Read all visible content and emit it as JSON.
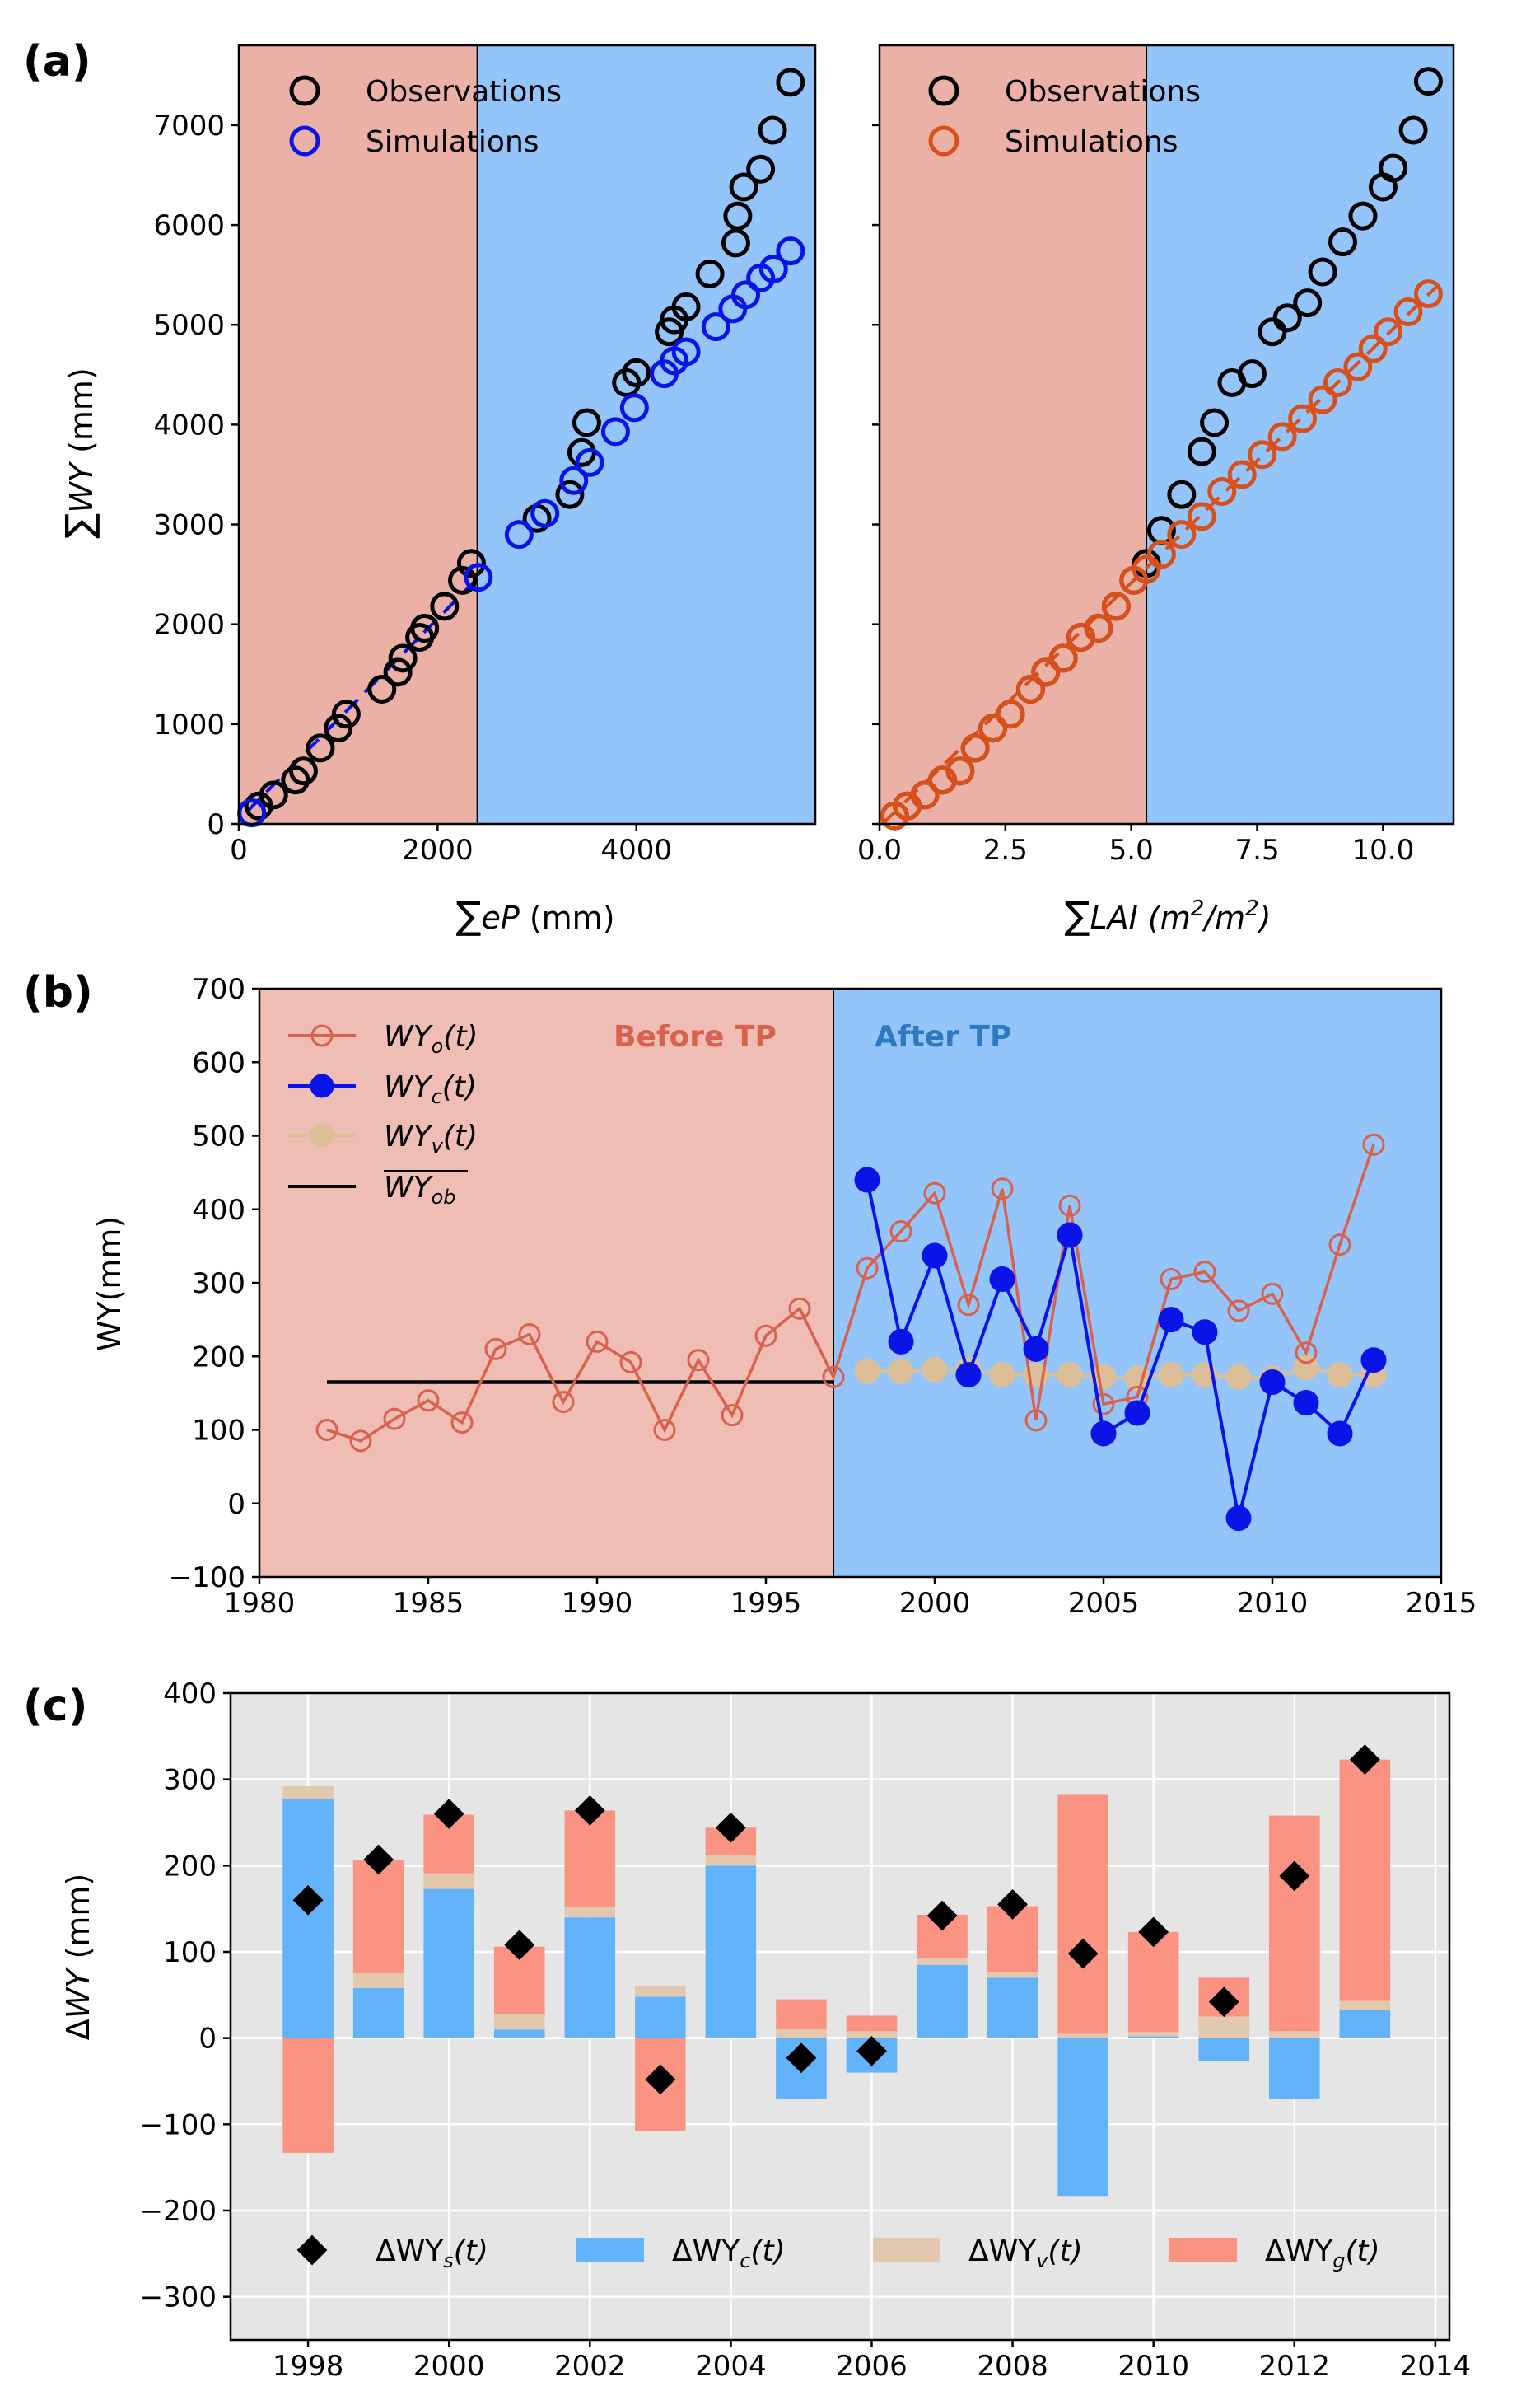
{
  "panel_labels": [
    "(a)",
    "(b)",
    "(c)"
  ],
  "colors": {
    "before_bg": "#ebb0a6",
    "after_bg": "#93c5fb",
    "before_bg_b": "#efbdb4",
    "obs": "#000000",
    "sim_left": "#0a14e6",
    "sim_right": "#d9501a",
    "wyo": "#d9624e",
    "wyc": "#0a14e6",
    "wyv": "#dcbf96",
    "mean": "#000000",
    "dc": "#63b3fb",
    "dv": "#e2c9ae",
    "dg": "#fb9382",
    "grid_bg": "#e5e5e5",
    "before_text": "#d9624e",
    "after_text": "#2f79c0"
  },
  "chart_data": [
    {
      "type": "scatter",
      "panel": "(a)",
      "xlabel_prefix": "∑",
      "xlabel_var": "eP",
      "xlabel_unit": " (mm)",
      "ylabel_prefix": "∑",
      "ylabel_var": "WY",
      "ylabel_unit": " (mm)",
      "xlim": [
        0,
        5800
      ],
      "ylim": [
        0,
        7800
      ],
      "xticks": [
        "0",
        "2000",
        "4000"
      ],
      "xtick_values": [
        0,
        2000,
        4000
      ],
      "yticks": [
        "0",
        "1000",
        "2000",
        "3000",
        "4000",
        "5000",
        "6000",
        "7000"
      ],
      "ytick_values": [
        0,
        1000,
        2000,
        3000,
        4000,
        5000,
        6000,
        7000
      ],
      "split_x": 2400,
      "legend": [
        "Observations",
        "Simulations"
      ],
      "legend_position": "upper-left",
      "fit_line": [
        [
          80,
          120
        ],
        [
          2410,
          2470
        ]
      ],
      "observations": {
        "x": [
          130,
          200,
          350,
          570,
          650,
          820,
          1000,
          1080,
          1440,
          1600,
          1650,
          1820,
          1870,
          2070,
          2250,
          2340,
          3000,
          3330,
          3450,
          3500,
          3900,
          4000,
          4330,
          4380,
          4500,
          4740,
          5000,
          5020,
          5080,
          5250,
          5370,
          5550
        ],
        "y": [
          110,
          180,
          290,
          440,
          530,
          760,
          960,
          1100,
          1350,
          1520,
          1660,
          1870,
          1960,
          2180,
          2440,
          2610,
          3060,
          3300,
          3720,
          4020,
          4420,
          4520,
          4930,
          5050,
          5180,
          5510,
          5820,
          6090,
          6380,
          6560,
          6950,
          7430
        ]
      },
      "simulations": {
        "x": [
          130,
          2410,
          2820,
          3080,
          3370,
          3530,
          3790,
          3980,
          4280,
          4380,
          4500,
          4800,
          4970,
          5100,
          5250,
          5380,
          5550
        ],
        "y": [
          110,
          2470,
          2900,
          3110,
          3440,
          3620,
          3930,
          4170,
          4510,
          4640,
          4730,
          4980,
          5160,
          5300,
          5470,
          5560,
          5740
        ]
      }
    },
    {
      "type": "scatter",
      "panel": "(a)",
      "xlabel_prefix": "∑",
      "xlabel_var": "LAI",
      "xlabel_unit_it": " (m",
      "xlabel_unit_exp": "2",
      "xlabel_unit_mid": "/m",
      "xlabel_unit_end": ")",
      "xlim": [
        0,
        11.4
      ],
      "ylim": [
        0,
        7800
      ],
      "xticks": [
        "0.0",
        "2.5",
        "5.0",
        "7.5",
        "10.0"
      ],
      "xtick_values": [
        0,
        2.5,
        5.0,
        7.5,
        10.0
      ],
      "split_x": 5.3,
      "legend": [
        "Observations",
        "Simulations"
      ],
      "legend_position": "upper-left",
      "fit_line": [
        [
          0.1,
          20
        ],
        [
          11.1,
          5400
        ]
      ],
      "observations": {
        "x": [
          0.3,
          0.55,
          0.9,
          1.25,
          1.6,
          1.9,
          2.25,
          2.6,
          3.0,
          3.3,
          3.65,
          4.0,
          4.35,
          4.7,
          5.05,
          5.3,
          5.6,
          6.0,
          6.4,
          6.65,
          7.0,
          7.4,
          7.8,
          8.1,
          8.5,
          8.8,
          9.2,
          9.6,
          10.0,
          10.2,
          10.6,
          10.9
        ],
        "y": [
          80,
          180,
          290,
          440,
          530,
          760,
          960,
          1100,
          1350,
          1520,
          1660,
          1870,
          1960,
          2180,
          2440,
          2610,
          2940,
          3300,
          3730,
          4020,
          4420,
          4510,
          4930,
          5070,
          5220,
          5530,
          5830,
          6090,
          6380,
          6570,
          6950,
          7440
        ]
      },
      "simulations": {
        "x": [
          0.3,
          0.55,
          0.9,
          1.25,
          1.6,
          1.9,
          2.25,
          2.6,
          3.0,
          3.3,
          3.65,
          4.0,
          4.35,
          4.7,
          5.05,
          5.3,
          5.6,
          6.0,
          6.4,
          6.8,
          7.2,
          7.6,
          8.0,
          8.4,
          8.8,
          9.1,
          9.5,
          9.8,
          10.1,
          10.5,
          10.9
        ],
        "y": [
          80,
          180,
          290,
          440,
          530,
          760,
          960,
          1100,
          1350,
          1520,
          1660,
          1870,
          1960,
          2180,
          2440,
          2550,
          2700,
          2900,
          3080,
          3330,
          3500,
          3700,
          3880,
          4060,
          4250,
          4420,
          4580,
          4760,
          4930,
          5130,
          5310
        ]
      }
    },
    {
      "type": "line",
      "panel": "(b)",
      "ylabel": "WY(mm)",
      "xlim": [
        1980,
        2015
      ],
      "ylim": [
        -100,
        700
      ],
      "xticks": [
        "1980",
        "1985",
        "1990",
        "1995",
        "2000",
        "2005",
        "2010",
        "2015"
      ],
      "xtick_values": [
        1980,
        1985,
        1990,
        1995,
        2000,
        2005,
        2010,
        2015
      ],
      "yticks": [
        "−100",
        "0",
        "100",
        "200",
        "300",
        "400",
        "500",
        "600",
        "700"
      ],
      "ytick_values": [
        -100,
        0,
        100,
        200,
        300,
        400,
        500,
        600,
        700
      ],
      "split_x": 1997,
      "region_labels": [
        "Before TP",
        "After TP"
      ],
      "legend_position": "upper-left",
      "legend": [
        {
          "var": "WY",
          "sub": "o",
          "arg": "(t)"
        },
        {
          "var": "WY",
          "sub": "c",
          "arg": "(t)"
        },
        {
          "var": "WY",
          "sub": "v",
          "arg": "(t)"
        },
        {
          "var": "WY",
          "sub": "ob",
          "arg": ""
        }
      ],
      "mean_value": 165,
      "mean_range": [
        1982,
        1997
      ],
      "series": [
        {
          "key": "wyo",
          "x": [
            1982,
            1983,
            1984,
            1985,
            1986,
            1987,
            1988,
            1989,
            1990,
            1991,
            1992,
            1993,
            1994,
            1995,
            1996,
            1997,
            1998,
            1999,
            2000,
            2001,
            2002,
            2003,
            2004,
            2005,
            2006,
            2007,
            2008,
            2009,
            2010,
            2011,
            2012,
            2013
          ],
          "y": [
            100,
            85,
            115,
            140,
            110,
            210,
            230,
            138,
            220,
            192,
            100,
            195,
            120,
            228,
            265,
            172,
            320,
            370,
            422,
            270,
            428,
            113,
            405,
            135,
            145,
            305,
            315,
            262,
            285,
            205,
            352,
            488
          ]
        },
        {
          "key": "wyc",
          "x": [
            1998,
            1999,
            2000,
            2001,
            2002,
            2003,
            2004,
            2005,
            2006,
            2007,
            2008,
            2009,
            2010,
            2011,
            2012,
            2013
          ],
          "y": [
            440,
            220,
            337,
            175,
            305,
            210,
            365,
            95,
            123,
            250,
            233,
            -20,
            165,
            137,
            95,
            195
          ]
        },
        {
          "key": "wyv",
          "x": [
            1998,
            1999,
            2000,
            2001,
            2002,
            2003,
            2004,
            2005,
            2006,
            2007,
            2008,
            2009,
            2010,
            2011,
            2012,
            2013
          ],
          "y": [
            180,
            180,
            182,
            182,
            175,
            175,
            175,
            172,
            170,
            175,
            175,
            172,
            170,
            185,
            175,
            175
          ]
        }
      ]
    },
    {
      "type": "bar",
      "panel": "(c)",
      "ylabel_prefix": "Δ",
      "ylabel_var": "WY",
      "ylabel_unit": " (mm)",
      "xlim": [
        1996.9,
        2014.2
      ],
      "ylim": [
        -350,
        400
      ],
      "xticks": [
        "1998",
        "2000",
        "2002",
        "2004",
        "2006",
        "2008",
        "2010",
        "2012",
        "2014"
      ],
      "xtick_values": [
        1998,
        2000,
        2002,
        2004,
        2006,
        2008,
        2010,
        2012,
        2014
      ],
      "yticks": [
        "−300",
        "−200",
        "−100",
        "0",
        "100",
        "200",
        "300",
        "400"
      ],
      "ytick_values": [
        -300,
        -200,
        -100,
        0,
        100,
        200,
        300,
        400
      ],
      "grid": true,
      "legend_position": "bottom",
      "legend": [
        {
          "var": "ΔWY",
          "sub": "s",
          "arg": "(t)"
        },
        {
          "var": "ΔWY",
          "sub": "c",
          "arg": "(t)"
        },
        {
          "var": "ΔWY",
          "sub": "v",
          "arg": "(t)"
        },
        {
          "var": "ΔWY",
          "sub": "g",
          "arg": "(t)"
        }
      ],
      "categories": [
        1998,
        1999,
        2000,
        2001,
        2002,
        2003,
        2004,
        2005,
        2006,
        2007,
        2008,
        2009,
        2010,
        2011,
        2012,
        2013
      ],
      "dWYc": [
        277,
        58,
        173,
        10,
        140,
        48,
        200,
        -70,
        -40,
        85,
        70,
        -183,
        2,
        -27,
        -70,
        33
      ],
      "dWYv": [
        15,
        17,
        18,
        18,
        12,
        12,
        12,
        10,
        8,
        8,
        6,
        5,
        5,
        25,
        8,
        10
      ],
      "dWYg": [
        -133,
        132,
        68,
        78,
        112,
        -108,
        32,
        35,
        18,
        50,
        77,
        277,
        116,
        45,
        250,
        280
      ],
      "dWYs": [
        160,
        207,
        260,
        108,
        264,
        -48,
        244,
        -23,
        -15,
        142,
        155,
        98,
        123,
        42,
        188,
        323
      ]
    }
  ]
}
